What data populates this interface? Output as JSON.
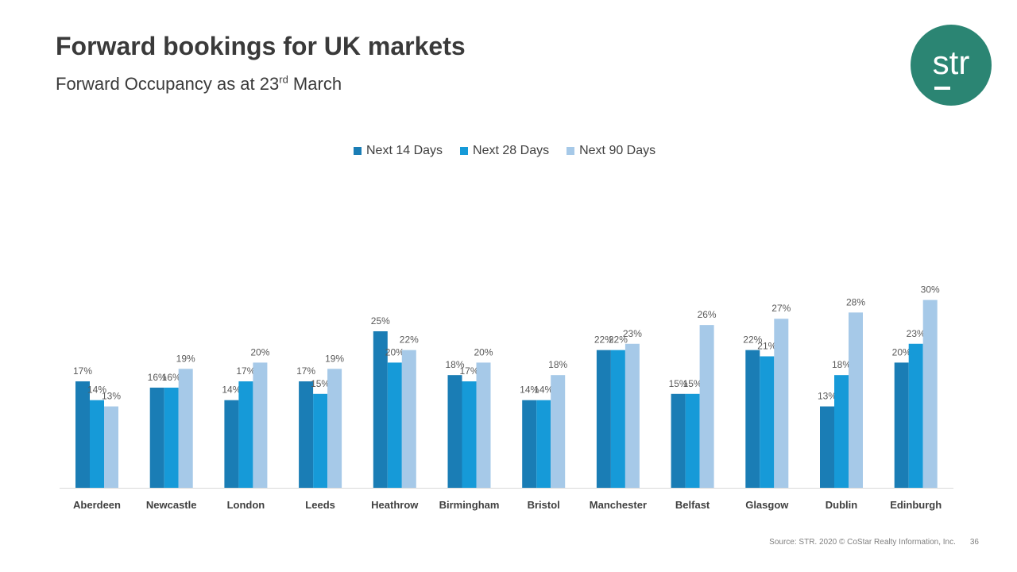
{
  "header": {
    "title": "Forward bookings for UK markets",
    "subtitle_main": "Forward Occupancy as at 23",
    "subtitle_sup": "rd",
    "subtitle_tail": " March"
  },
  "logo": {
    "text": "str",
    "color": "#2b8573"
  },
  "footer": {
    "source": "Source: STR. 2020 © CoStar Realty Information, Inc.",
    "page_number": "36"
  },
  "chart_data": {
    "type": "bar",
    "categories": [
      "Aberdeen",
      "Newcastle",
      "London",
      "Leeds",
      "Heathrow",
      "Birmingham",
      "Bristol",
      "Manchester",
      "Belfast",
      "Glasgow",
      "Dublin",
      "Edinburgh"
    ],
    "series": [
      {
        "name": "Next 14 Days",
        "color": "#1a7db5",
        "values": [
          17,
          16,
          14,
          17,
          25,
          18,
          14,
          22,
          15,
          22,
          13,
          20
        ]
      },
      {
        "name": "Next 28 Days",
        "color": "#169ad8",
        "values": [
          14,
          16,
          17,
          15,
          20,
          17,
          14,
          22,
          15,
          21,
          18,
          23
        ]
      },
      {
        "name": "Next 90 Days",
        "color": "#a6c9e8",
        "values": [
          13,
          19,
          20,
          19,
          22,
          20,
          18,
          23,
          26,
          27,
          28,
          30
        ]
      }
    ],
    "value_suffix": "%",
    "ylim": [
      0,
      30
    ],
    "legend_position": "top",
    "grid": false
  }
}
